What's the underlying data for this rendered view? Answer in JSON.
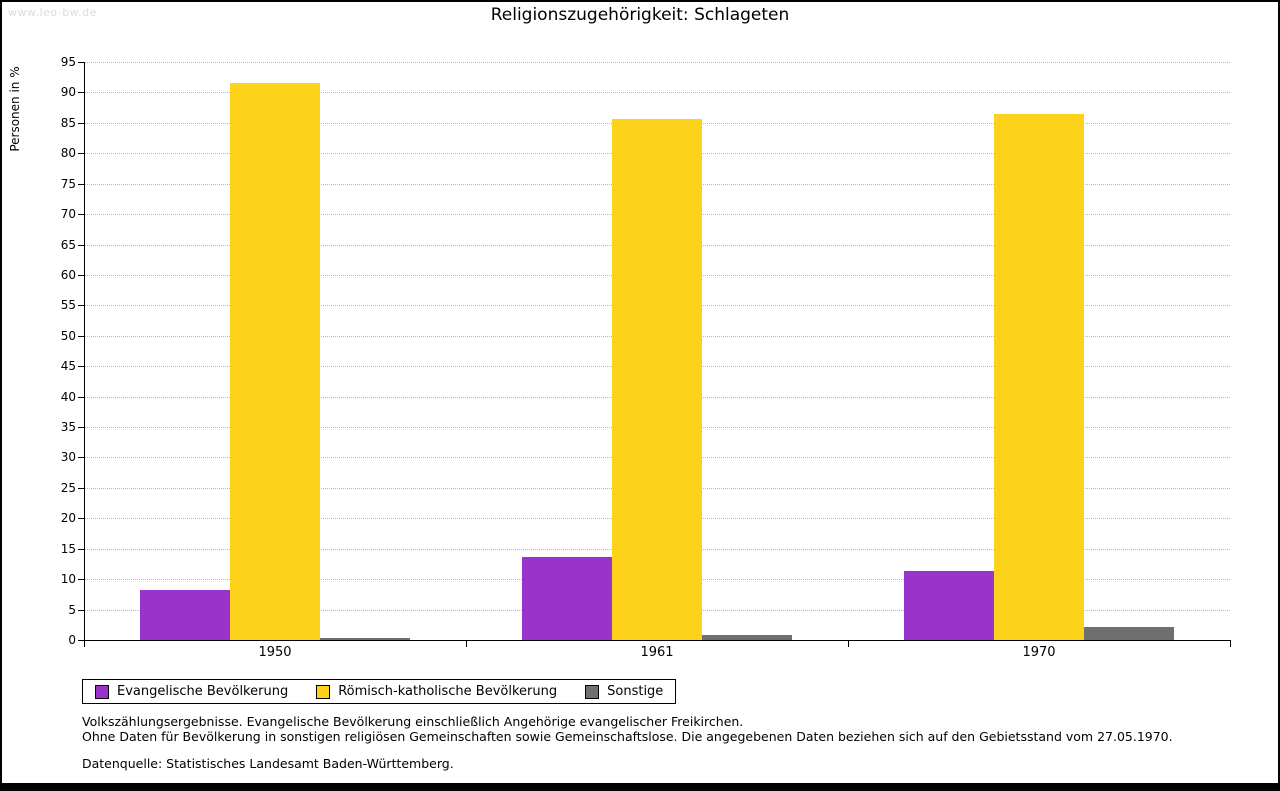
{
  "watermark": "www.leo-bw.de",
  "title": "Religionszugehörigkeit: Schlageten",
  "chart_data": {
    "type": "bar",
    "title": "Religionszugehörigkeit: Schlageten",
    "xlabel": "",
    "ylabel": "Personen in %",
    "ylim": [
      0,
      95
    ],
    "ytick_step": 5,
    "grid": true,
    "legend_position": "bottom",
    "categories": [
      "1950",
      "1961",
      "1970"
    ],
    "series": [
      {
        "name": "Evangelische Bevölkerung",
        "color": "#9933cc",
        "values": [
          8.3,
          13.7,
          11.4
        ]
      },
      {
        "name": "Römisch-katholische Bevölkerung",
        "color": "#fcd21b",
        "values": [
          91.5,
          85.7,
          86.4
        ]
      },
      {
        "name": "Sonstige",
        "color": "#6f6f6f",
        "values": [
          0.3,
          0.8,
          2.2
        ]
      }
    ]
  },
  "footer": {
    "notes": [
      "Volkszählungsergebnisse. Evangelische Bevölkerung einschließlich Angehörige evangelischer Freikirchen.",
      "Ohne Daten für Bevölkerung in sonstigen religiösen Gemeinschaften sowie Gemeinschaftslose. Die angegebenen Daten beziehen sich auf den Gebietsstand vom 27.05.1970."
    ],
    "source": "Datenquelle: Statistisches Landesamt Baden-Württemberg."
  }
}
